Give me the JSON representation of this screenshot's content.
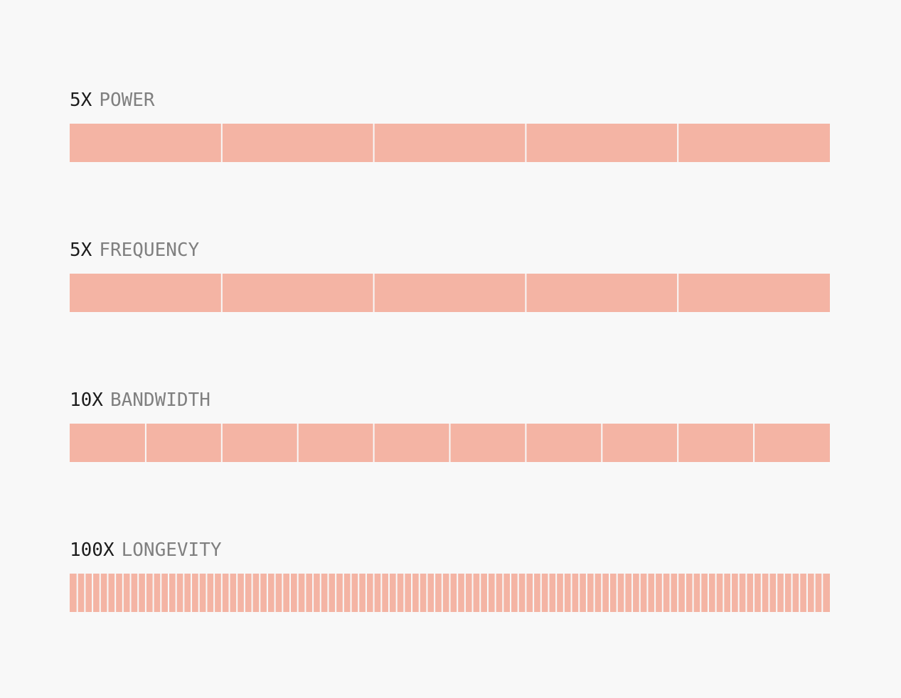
{
  "chart_data": {
    "type": "bar",
    "colors": {
      "segment": "#f4b4a4",
      "divider": "#f8f8f8",
      "multiplier_text": "#1c1c1c",
      "label_text": "#808080"
    },
    "items": [
      {
        "multiplier": "5X",
        "label": "POWER",
        "value": 5
      },
      {
        "multiplier": "5X",
        "label": "FREQUENCY",
        "value": 5
      },
      {
        "multiplier": "10X",
        "label": "BANDWIDTH",
        "value": 10
      },
      {
        "multiplier": "100X",
        "label": "LONGEVITY",
        "value": 100
      }
    ]
  }
}
